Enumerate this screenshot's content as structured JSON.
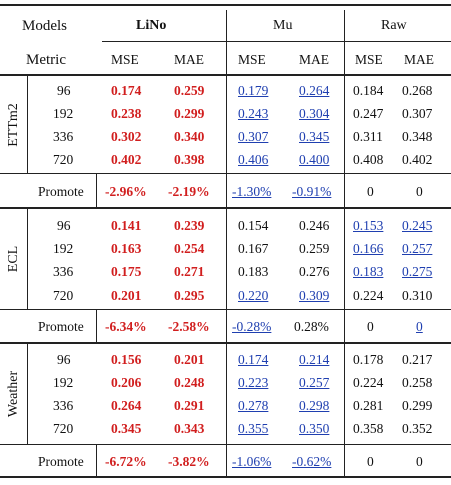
{
  "header": {
    "models_label": "Models",
    "metric_label": "Metric",
    "models": [
      "LiNo",
      "Mu",
      "Raw"
    ],
    "metrics": [
      "MSE",
      "MAE",
      "MSE",
      "MAE",
      "MSE",
      "MAE"
    ]
  },
  "style_colors": {
    "best": "#d11e1e",
    "second": "#1f3fb0",
    "plain": "#111111"
  },
  "groups": [
    {
      "name": "ETTm2",
      "rows": [
        {
          "h": "96",
          "vals": [
            "0.174",
            "0.259",
            "0.179",
            "0.264",
            "0.184",
            "0.268"
          ],
          "style": [
            "r",
            "r",
            "u",
            "u",
            "n",
            "n"
          ]
        },
        {
          "h": "192",
          "vals": [
            "0.238",
            "0.299",
            "0.243",
            "0.304",
            "0.247",
            "0.307"
          ],
          "style": [
            "r",
            "r",
            "u",
            "u",
            "n",
            "n"
          ]
        },
        {
          "h": "336",
          "vals": [
            "0.302",
            "0.340",
            "0.307",
            "0.345",
            "0.311",
            "0.348"
          ],
          "style": [
            "r",
            "r",
            "u",
            "u",
            "n",
            "n"
          ]
        },
        {
          "h": "720",
          "vals": [
            "0.402",
            "0.398",
            "0.406",
            "0.400",
            "0.408",
            "0.402"
          ],
          "style": [
            "r",
            "r",
            "u",
            "u",
            "n",
            "n"
          ]
        }
      ],
      "promote": {
        "label": "Promote",
        "vals": [
          "-2.96%",
          "-2.19%",
          "-1.30%",
          "-0.91%",
          "0",
          "0"
        ],
        "style": [
          "r",
          "r",
          "u",
          "u",
          "n",
          "n"
        ]
      }
    },
    {
      "name": "ECL",
      "rows": [
        {
          "h": "96",
          "vals": [
            "0.141",
            "0.239",
            "0.154",
            "0.246",
            "0.153",
            "0.245"
          ],
          "style": [
            "r",
            "r",
            "n",
            "n",
            "u",
            "u"
          ]
        },
        {
          "h": "192",
          "vals": [
            "0.163",
            "0.254",
            "0.167",
            "0.259",
            "0.166",
            "0.257"
          ],
          "style": [
            "r",
            "r",
            "n",
            "n",
            "u",
            "u"
          ]
        },
        {
          "h": "336",
          "vals": [
            "0.175",
            "0.271",
            "0.183",
            "0.276",
            "0.183",
            "0.275"
          ],
          "style": [
            "r",
            "r",
            "n",
            "n",
            "u",
            "u"
          ]
        },
        {
          "h": "720",
          "vals": [
            "0.201",
            "0.295",
            "0.220",
            "0.309",
            "0.224",
            "0.310"
          ],
          "style": [
            "r",
            "r",
            "u",
            "u",
            "n",
            "n"
          ]
        }
      ],
      "promote": {
        "label": "Promote",
        "vals": [
          "-6.34%",
          "-2.58%",
          "-0.28%",
          "0.28%",
          "0",
          "0"
        ],
        "style": [
          "r",
          "r",
          "u",
          "n",
          "n",
          "u"
        ]
      }
    },
    {
      "name": "Weather",
      "rows": [
        {
          "h": "96",
          "vals": [
            "0.156",
            "0.201",
            "0.174",
            "0.214",
            "0.178",
            "0.217"
          ],
          "style": [
            "r",
            "r",
            "u",
            "u",
            "n",
            "n"
          ]
        },
        {
          "h": "192",
          "vals": [
            "0.206",
            "0.248",
            "0.223",
            "0.257",
            "0.224",
            "0.258"
          ],
          "style": [
            "r",
            "r",
            "u",
            "u",
            "n",
            "n"
          ]
        },
        {
          "h": "336",
          "vals": [
            "0.264",
            "0.291",
            "0.278",
            "0.298",
            "0.281",
            "0.299"
          ],
          "style": [
            "r",
            "r",
            "u",
            "u",
            "n",
            "n"
          ]
        },
        {
          "h": "720",
          "vals": [
            "0.345",
            "0.343",
            "0.355",
            "0.350",
            "0.358",
            "0.352"
          ],
          "style": [
            "r",
            "r",
            "u",
            "u",
            "n",
            "n"
          ]
        }
      ],
      "promote": {
        "label": "Promote",
        "vals": [
          "-6.72%",
          "-3.82%",
          "-1.06%",
          "-0.62%",
          "0",
          "0"
        ],
        "style": [
          "r",
          "r",
          "u",
          "u",
          "n",
          "n"
        ]
      }
    }
  ]
}
